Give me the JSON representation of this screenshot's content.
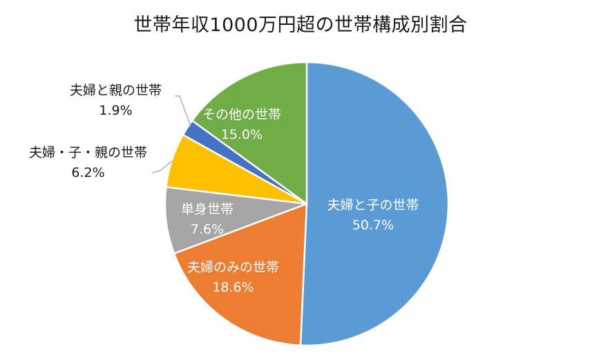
{
  "chart_data": {
    "type": "pie",
    "title": "世帯年収1000万円超の世帯構成別割合",
    "start_angle_deg": 0,
    "direction": "clockwise",
    "slices": [
      {
        "label": "夫婦と子の世帯",
        "value": 50.7,
        "value_text": "50.7%",
        "color": "#5B9BD5"
      },
      {
        "label": "夫婦のみの世帯",
        "value": 18.6,
        "value_text": "18.6%",
        "color": "#ED7D31"
      },
      {
        "label": "単身世帯",
        "value": 7.6,
        "value_text": "7.6%",
        "color": "#A5A5A5"
      },
      {
        "label": "夫婦・子・親の世帯",
        "value": 6.2,
        "value_text": "6.2%",
        "color": "#FFC000"
      },
      {
        "label": "夫婦と親の世帯",
        "value": 1.9,
        "value_text": "1.9%",
        "color": "#4472C4"
      },
      {
        "label": "その他の世帯",
        "value": 15.0,
        "value_text": "15.0%",
        "color": "#70AD47"
      }
    ],
    "legend": "none",
    "data_labels": "category name and percentage"
  }
}
